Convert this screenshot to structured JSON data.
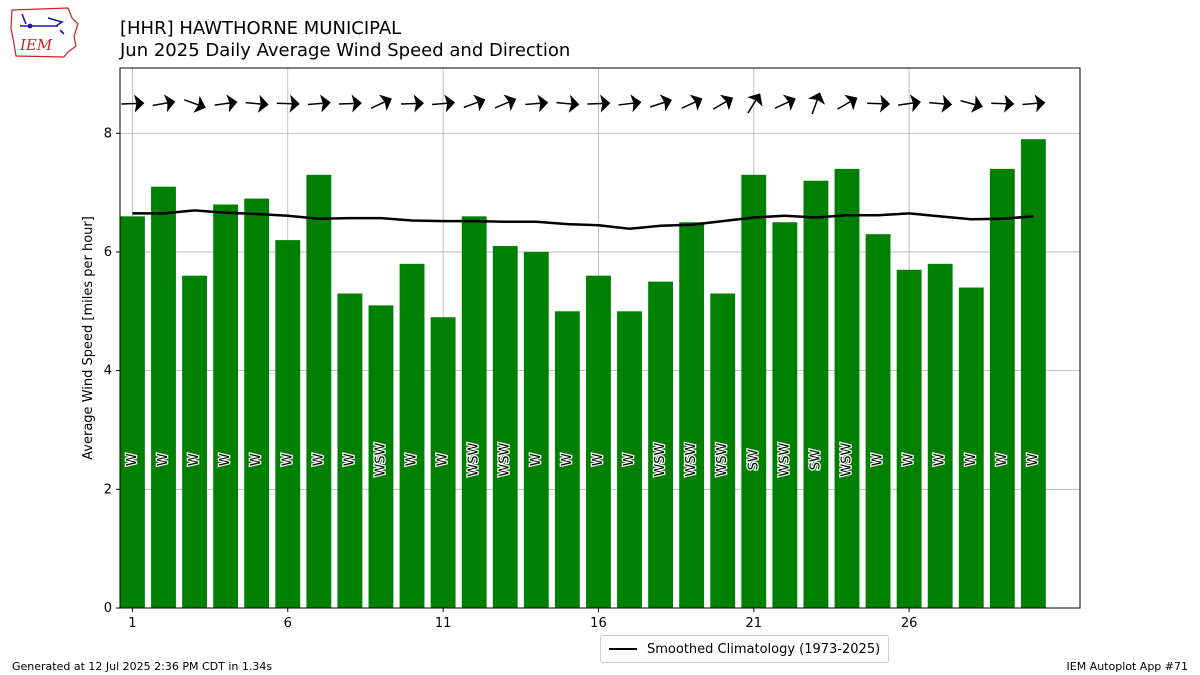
{
  "header": {
    "title_line1": "[HHR] HAWTHORNE MUNICIPAL",
    "title_line2": "Jun 2025 Daily Average Wind Speed and Direction",
    "logo_text": "IEM"
  },
  "footer": {
    "left": "Generated at 12 Jul 2025 2:36 PM CDT in 1.34s",
    "right": "IEM Autoplot App #71"
  },
  "legend": {
    "climatology_label": "Smoothed Climatology (1973-2025)"
  },
  "colors": {
    "bar": "#008000",
    "line": "#000000",
    "grid": "#b0b0b0",
    "logo_red": "#cc2222",
    "logo_blue": "#1a1aaa"
  },
  "chart_data": {
    "type": "bar",
    "ylabel": "Average Wind Speed [miles per hour]",
    "xlabel": "",
    "ylim": [
      0,
      9.1
    ],
    "xlim": [
      0.6,
      31.5
    ],
    "yticks": [
      0,
      2,
      4,
      6,
      8
    ],
    "xticks": [
      1,
      6,
      11,
      16,
      21,
      26
    ],
    "grid": true,
    "legend_position": "bottom-center",
    "days": [
      1,
      2,
      3,
      4,
      5,
      6,
      7,
      8,
      9,
      10,
      11,
      12,
      13,
      14,
      15,
      16,
      17,
      18,
      19,
      20,
      21,
      22,
      23,
      24,
      25,
      26,
      27,
      28,
      29,
      30
    ],
    "values": [
      6.6,
      7.1,
      5.6,
      6.8,
      6.9,
      6.2,
      7.3,
      5.3,
      5.1,
      5.8,
      4.9,
      6.6,
      6.1,
      6.0,
      5.0,
      5.6,
      5.0,
      5.5,
      6.5,
      5.3,
      7.3,
      6.5,
      7.2,
      7.4,
      6.3,
      5.7,
      5.8,
      5.4,
      7.4,
      7.9
    ],
    "direction_labels": [
      "W",
      "W",
      "W",
      "W",
      "W",
      "W",
      "W",
      "W",
      "WSW",
      "W",
      "W",
      "WSW",
      "WSW",
      "W",
      "W",
      "W",
      "W",
      "WSW",
      "WSW",
      "WSW",
      "SW",
      "WSW",
      "SW",
      "WSW",
      "W",
      "W",
      "W",
      "W",
      "W",
      "W"
    ],
    "direction_degrees": [
      268,
      260,
      290,
      262,
      275,
      272,
      265,
      268,
      245,
      268,
      265,
      250,
      247,
      265,
      275,
      268,
      263,
      252,
      245,
      240,
      212,
      245,
      200,
      240,
      272,
      262,
      275,
      285,
      272,
      265
    ],
    "climatology": [
      6.65,
      6.65,
      6.7,
      6.66,
      6.64,
      6.61,
      6.56,
      6.57,
      6.57,
      6.53,
      6.52,
      6.52,
      6.51,
      6.51,
      6.47,
      6.45,
      6.39,
      6.44,
      6.46,
      6.52,
      6.58,
      6.61,
      6.58,
      6.62,
      6.62,
      6.65,
      6.6,
      6.55,
      6.56,
      6.6
    ]
  }
}
